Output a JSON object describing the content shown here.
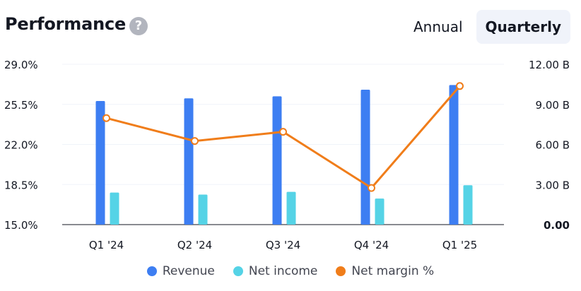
{
  "header": {
    "title": "Performance",
    "help_icon": "?",
    "tabs": [
      {
        "label": "Annual",
        "active": false
      },
      {
        "label": "Quarterly",
        "active": true
      }
    ]
  },
  "chart_data": {
    "type": "bar",
    "categories": [
      "Q1 '24",
      "Q2 '24",
      "Q3 '24",
      "Q4 '24",
      "Q1 '25"
    ],
    "series": [
      {
        "name": "Revenue",
        "axis": "right",
        "type": "bar",
        "color": "#3d7ef2",
        "values": [
          9.25,
          9.45,
          9.6,
          10.1,
          10.45
        ]
      },
      {
        "name": "Net income",
        "axis": "right",
        "type": "bar",
        "color": "#55d3e6",
        "values": [
          2.4,
          2.25,
          2.45,
          1.95,
          2.95
        ]
      },
      {
        "name": "Net margin %",
        "axis": "left",
        "type": "line",
        "color": "#f07d1a",
        "values": [
          24.3,
          22.3,
          23.1,
          18.2,
          27.1
        ]
      }
    ],
    "left_axis": {
      "ticks": [
        "29.0%",
        "25.5%",
        "22.0%",
        "18.5%",
        "15.0%"
      ],
      "ylim": [
        15.0,
        29.0
      ]
    },
    "right_axis": {
      "ticks": [
        "12.00 B",
        "9.00 B",
        "6.00 B",
        "3.00 B",
        "0.00"
      ],
      "ylim": [
        0,
        12
      ]
    },
    "grid": true,
    "legend_position": "bottom"
  }
}
